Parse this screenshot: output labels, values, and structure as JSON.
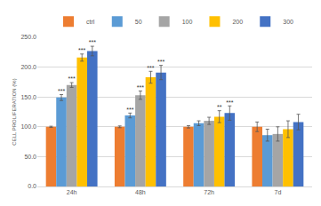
{
  "chart_data": {
    "type": "bar",
    "y_label": "CELL PROLIFERATION (%)",
    "categories": [
      "24h",
      "48h",
      "72h",
      "7d"
    ],
    "series": [
      {
        "name": "ctrl",
        "color": "#ED7D31",
        "values": [
          100,
          100,
          100,
          100
        ],
        "errors": [
          1,
          1.5,
          2,
          8
        ],
        "significance": [
          null,
          null,
          null,
          null
        ]
      },
      {
        "name": "50",
        "color": "#5B9BD5",
        "values": [
          149,
          119,
          106,
          86
        ],
        "errors": [
          5,
          4,
          4,
          10
        ],
        "significance": [
          "***",
          "***",
          null,
          null
        ]
      },
      {
        "name": "100",
        "color": "#A5A5A5",
        "values": [
          170,
          153,
          110,
          88
        ],
        "errors": [
          4,
          7,
          6,
          12
        ],
        "significance": [
          "***",
          "***",
          null,
          null
        ]
      },
      {
        "name": "200",
        "color": "#FFC000",
        "values": [
          216,
          183,
          117,
          96
        ],
        "errors": [
          6,
          10,
          10,
          14
        ],
        "significance": [
          "***",
          "***",
          "**",
          null
        ]
      },
      {
        "name": "300",
        "color": "#4472C4",
        "values": [
          227,
          191,
          123,
          108
        ],
        "errors": [
          8,
          12,
          12,
          13
        ],
        "significance": [
          "***",
          "***",
          "***",
          null
        ]
      }
    ],
    "ylim": [
      0,
      250
    ],
    "yticks": [
      {
        "value": 0,
        "label": "0.0"
      },
      {
        "value": 50,
        "label": "50.0"
      },
      {
        "value": 100,
        "label": "100.0"
      },
      {
        "value": 150,
        "label": "150.0"
      },
      {
        "value": 200,
        "label": "200.0"
      },
      {
        "value": 250,
        "label": "250.0"
      }
    ],
    "grid": true,
    "legend": "top"
  }
}
